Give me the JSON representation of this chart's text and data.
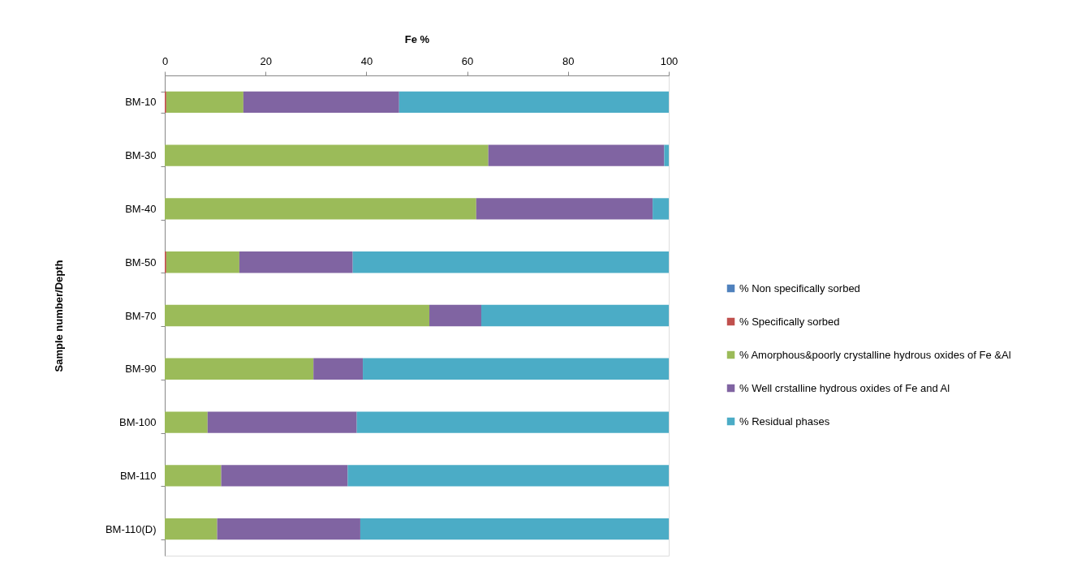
{
  "chart_data": {
    "type": "bar",
    "orientation": "horizontal",
    "stacked": true,
    "xlabel": "Fe %",
    "ylabel": "Sample number/Depth",
    "categories": [
      "BM-10",
      "BM-30",
      "BM-40",
      "BM-50",
      "BM-70",
      "BM-90",
      "BM-100",
      "BM-110",
      "BM-110(D)"
    ],
    "xlim": [
      0,
      100
    ],
    "xticks": [
      0,
      20,
      40,
      60,
      80,
      100
    ],
    "legend": "right",
    "series": [
      {
        "name": "% Non specifically sorbed",
        "color": "#4f81bd",
        "values": [
          0,
          0,
          0,
          0,
          0,
          0,
          0,
          0,
          0
        ]
      },
      {
        "name": "% Specifically sorbed",
        "color": "#c0504d",
        "values": [
          0.3,
          0,
          0,
          0.3,
          0,
          0,
          0,
          0,
          0
        ]
      },
      {
        "name": "% Amorphous&poorly crystalline hydrous oxides of Fe &Al",
        "color": "#9bbb59",
        "values": [
          15.3,
          64.2,
          61.8,
          14.5,
          52.5,
          29.5,
          8.5,
          11.2,
          10.4
        ]
      },
      {
        "name": "% Well crstalline  hydrous oxides of Fe and Al",
        "color": "#8064a2",
        "values": [
          30.9,
          34.9,
          35.0,
          22.5,
          10.3,
          9.8,
          29.6,
          25.1,
          28.4
        ]
      },
      {
        "name": "% Residual phases",
        "color": "#4bacc6",
        "values": [
          53.5,
          0.9,
          3.2,
          62.7,
          37.2,
          60.7,
          61.9,
          63.7,
          61.2
        ]
      }
    ]
  }
}
